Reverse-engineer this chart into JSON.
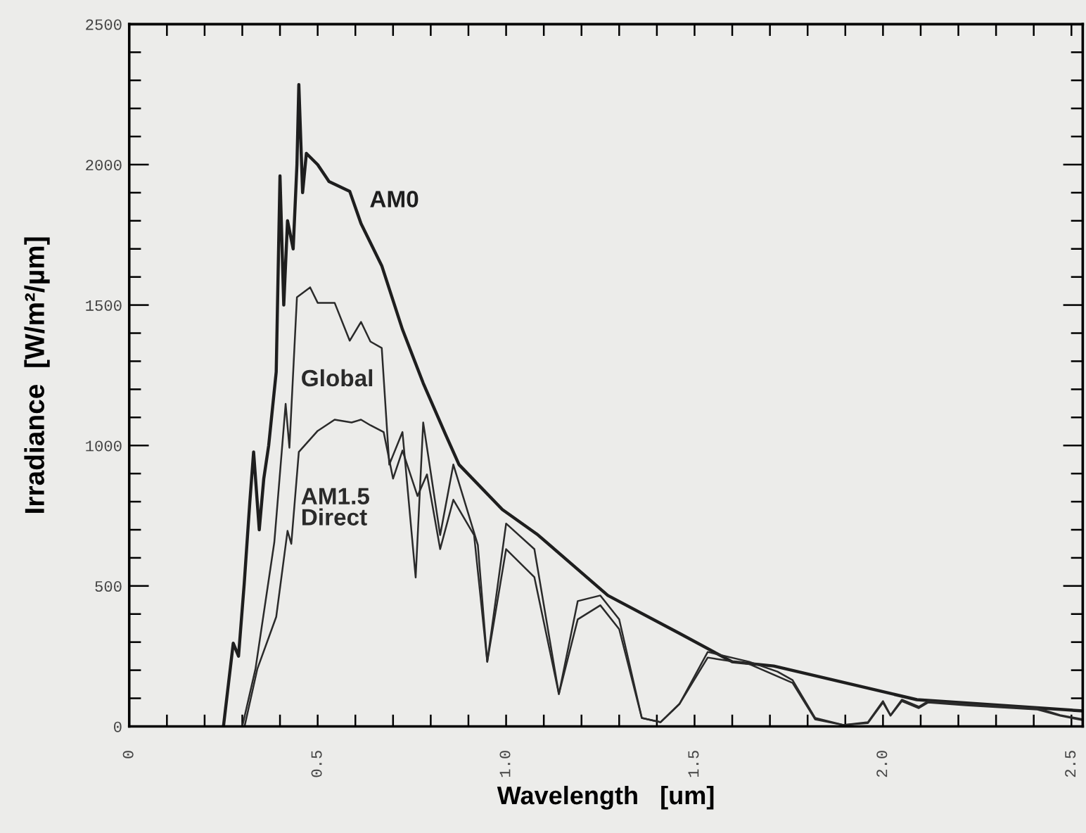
{
  "chart_data": {
    "type": "line",
    "xlabel": "Wavelength   [um]",
    "ylabel": "Irradiance  [W/m²/µm]",
    "xlim": [
      0,
      2.53
    ],
    "ylim": [
      0,
      2500
    ],
    "xticks": [
      0,
      {
        "value": 0.1,
        "label": null
      },
      {
        "value": 0.2,
        "label": null
      },
      {
        "value": 0.3,
        "label": null
      },
      {
        "value": 0.4,
        "label": null
      },
      0.5,
      {
        "value": 0.6,
        "label": null
      },
      {
        "value": 0.7,
        "label": null
      },
      {
        "value": 0.8,
        "label": null
      },
      {
        "value": 0.9,
        "label": null
      },
      {
        "value": 1.0,
        "label": "1.0"
      },
      {
        "value": 1.1,
        "label": null
      },
      {
        "value": 1.2,
        "label": null
      },
      {
        "value": 1.3,
        "label": null
      },
      {
        "value": 1.4,
        "label": null
      },
      1.5,
      {
        "value": 1.6,
        "label": null
      },
      {
        "value": 1.7,
        "label": null
      },
      {
        "value": 1.8,
        "label": null
      },
      {
        "value": 1.9,
        "label": null
      },
      {
        "value": 2.0,
        "label": "2.0"
      },
      {
        "value": 2.1,
        "label": null
      },
      {
        "value": 2.2,
        "label": null
      },
      {
        "value": 2.3,
        "label": null
      },
      {
        "value": 2.4,
        "label": null
      },
      2.5
    ],
    "yticks": [
      0,
      {
        "value": 100,
        "label": null
      },
      {
        "value": 200,
        "label": null
      },
      {
        "value": 300,
        "label": null
      },
      {
        "value": 400,
        "label": null
      },
      500,
      {
        "value": 600,
        "label": null
      },
      {
        "value": 700,
        "label": null
      },
      {
        "value": 800,
        "label": null
      },
      {
        "value": 900,
        "label": null
      },
      1000,
      {
        "value": 1100,
        "label": null
      },
      {
        "value": 1200,
        "label": null
      },
      {
        "value": 1300,
        "label": null
      },
      {
        "value": 1400,
        "label": null
      },
      1500,
      {
        "value": 1600,
        "label": null
      },
      {
        "value": 1700,
        "label": null
      },
      {
        "value": 1800,
        "label": null
      },
      {
        "value": 1900,
        "label": null
      },
      2000,
      {
        "value": 2100,
        "label": null
      },
      {
        "value": 2200,
        "label": null
      },
      {
        "value": 2300,
        "label": null
      },
      {
        "value": 2400,
        "label": null
      },
      2500
    ],
    "grid": false,
    "legend": false,
    "marker": "none",
    "line_style": "solid",
    "series": [
      {
        "name": "AM0",
        "color": "#1e1e1e",
        "x": [
          0.25,
          0.276,
          0.29,
          0.305,
          0.32,
          0.33,
          0.345,
          0.357,
          0.37,
          0.39,
          0.4,
          0.41,
          0.42,
          0.435,
          0.445,
          0.45,
          0.46,
          0.47,
          0.5,
          0.53,
          0.585,
          0.615,
          0.67,
          0.725,
          0.78,
          0.84,
          0.875,
          0.99,
          1.085,
          1.27,
          1.46,
          1.6,
          1.71,
          2.09,
          2.53
        ],
        "values": [
          0,
          296,
          250,
          506,
          800,
          977,
          700,
          882,
          1000,
          1262,
          1960,
          1500,
          1800,
          1700,
          2000,
          2285,
          1900,
          2040,
          2000,
          1940,
          1905,
          1790,
          1640,
          1413,
          1222,
          1037,
          932,
          772,
          681,
          466,
          331,
          230,
          215,
          95,
          55
        ]
      },
      {
        "name": "Global",
        "color": "#2a2a2a",
        "x": [
          0.3,
          0.335,
          0.385,
          0.415,
          0.425,
          0.445,
          0.48,
          0.5,
          0.545,
          0.585,
          0.615,
          0.64,
          0.67,
          0.69,
          0.725,
          0.76,
          0.78,
          0.825,
          0.86,
          0.925,
          0.95,
          1.0,
          1.075,
          1.14,
          1.19,
          1.25,
          1.3,
          1.36,
          1.41,
          1.46,
          1.535,
          1.645,
          1.72,
          1.76,
          1.82,
          1.895,
          1.96,
          2.0,
          2.02,
          2.05,
          2.095,
          2.12,
          2.22,
          2.41,
          2.47,
          2.53
        ],
        "values": [
          0,
          205,
          656,
          1148,
          992,
          1528,
          1563,
          1508,
          1508,
          1373,
          1440,
          1370,
          1347,
          932,
          1048,
          530,
          1082,
          681,
          932,
          646,
          230,
          722,
          631,
          115,
          446,
          466,
          381,
          30,
          15,
          80,
          265,
          230,
          195,
          165,
          30,
          5,
          15,
          90,
          40,
          95,
          70,
          90,
          80,
          65,
          40,
          25
        ]
      },
      {
        "name": "AM1.5\nDirect",
        "color": "#2a2a2a",
        "x": [
          0.306,
          0.34,
          0.39,
          0.42,
          0.43,
          0.45,
          0.5,
          0.545,
          0.59,
          0.615,
          0.64,
          0.675,
          0.7,
          0.725,
          0.765,
          0.79,
          0.825,
          0.86,
          0.915,
          0.95,
          1.0,
          1.075,
          1.14,
          1.19,
          1.25,
          1.3,
          1.36,
          1.41,
          1.46,
          1.535,
          1.645,
          1.76,
          1.82,
          1.895,
          1.96,
          2.0,
          2.02,
          2.05,
          2.095,
          2.12,
          2.22,
          2.41,
          2.47,
          2.53
        ],
        "values": [
          0,
          205,
          390,
          696,
          650,
          977,
          1052,
          1092,
          1082,
          1092,
          1072,
          1048,
          882,
          982,
          820,
          897,
          631,
          807,
          681,
          230,
          631,
          531,
          115,
          381,
          431,
          346,
          30,
          15,
          80,
          245,
          222,
          155,
          25,
          5,
          12,
          85,
          38,
          90,
          65,
          85,
          75,
          60,
          38,
          22
        ]
      }
    ]
  }
}
